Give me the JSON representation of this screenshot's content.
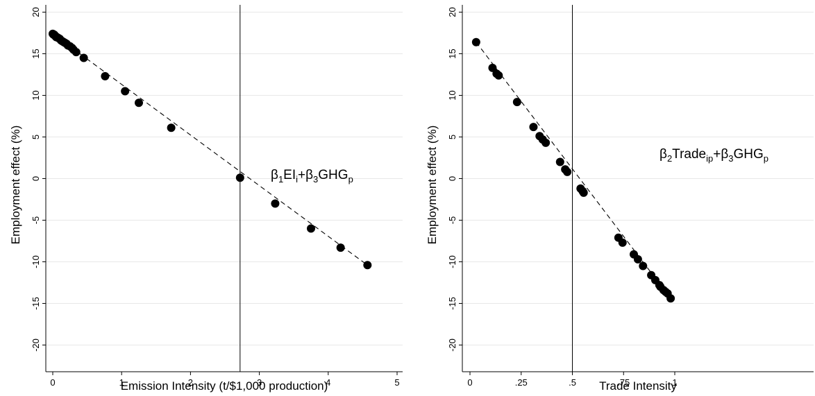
{
  "chart_data": [
    {
      "type": "scatter",
      "xlabel": "Emission Intensity (t/$1,000 production)",
      "ylabel": "Employment effect (%)",
      "xlim": [
        0,
        5
      ],
      "ylim": [
        -20,
        20
      ],
      "x_ticks": [
        0,
        1,
        2,
        3,
        4,
        5
      ],
      "x_tick_labels": [
        "0",
        "1",
        "2",
        "3",
        "4",
        "5"
      ],
      "y_ticks": [
        -20,
        -15,
        -10,
        -5,
        0,
        5,
        10,
        15,
        20
      ],
      "y_tick_labels": [
        "-20",
        "-15",
        "-10",
        "-5",
        "0",
        "5",
        "10",
        "15",
        "20"
      ],
      "grid": true,
      "reference_line_x": 2.72,
      "annotation": {
        "parts": [
          {
            "t": "β",
            "sub": false
          },
          {
            "t": "1",
            "sub": true
          },
          {
            "t": "EI",
            "sub": false
          },
          {
            "t": "i",
            "sub": true
          },
          {
            "t": "+β",
            "sub": false
          },
          {
            "t": "3",
            "sub": true
          },
          {
            "t": "GHG",
            "sub": false
          },
          {
            "t": "p",
            "sub": true
          }
        ]
      },
      "fit_line": {
        "x": [
          0,
          4.57
        ],
        "y": [
          17.4,
          -10.4
        ]
      },
      "series": [
        {
          "x": [
            0.0,
            0.01,
            0.02,
            0.03,
            0.04,
            0.05,
            0.06,
            0.08,
            0.1,
            0.12,
            0.14,
            0.16,
            0.18,
            0.2,
            0.22,
            0.25,
            0.28,
            0.3,
            0.34,
            0.45,
            0.76,
            1.05,
            1.25,
            1.72,
            2.72,
            3.23,
            3.75,
            4.18,
            4.57
          ],
          "y": [
            17.4,
            17.3,
            17.3,
            17.2,
            17.1,
            17.0,
            17.0,
            16.9,
            16.8,
            16.6,
            16.5,
            16.4,
            16.3,
            16.2,
            16.0,
            15.9,
            15.7,
            15.5,
            15.2,
            14.5,
            12.3,
            10.5,
            9.1,
            6.1,
            0.1,
            -3.0,
            -6.0,
            -8.3,
            -10.4
          ]
        }
      ]
    },
    {
      "type": "scatter",
      "xlabel": "Trade Intensity",
      "ylabel": "Employment effect (%)",
      "xlim": [
        0,
        1
      ],
      "ylim": [
        -20,
        20
      ],
      "x_ticks": [
        0,
        0.25,
        0.5,
        0.75,
        1
      ],
      "x_tick_labels": [
        "0",
        ".25",
        ".5",
        ".75",
        "1"
      ],
      "y_ticks": [
        -20,
        -15,
        -10,
        -5,
        0,
        5,
        10,
        15,
        20
      ],
      "y_tick_labels": [
        "-20",
        "-15",
        "-10",
        "-5",
        "0",
        "5",
        "10",
        "15",
        "20"
      ],
      "grid": true,
      "reference_line_x": 0.5,
      "annotation": {
        "parts": [
          {
            "t": "β",
            "sub": false
          },
          {
            "t": "2",
            "sub": true
          },
          {
            "t": "Trade",
            "sub": false
          },
          {
            "t": "ip",
            "sub": true
          },
          {
            "t": "+β",
            "sub": false
          },
          {
            "t": "3",
            "sub": true
          },
          {
            "t": "GHG",
            "sub": false
          },
          {
            "t": "p",
            "sub": true
          }
        ]
      },
      "fit_line": {
        "x": [
          0.03,
          0.98
        ],
        "y": [
          16.4,
          -14.4
        ]
      },
      "series": [
        {
          "x": [
            0.03,
            0.11,
            0.13,
            0.14,
            0.23,
            0.31,
            0.34,
            0.355,
            0.37,
            0.44,
            0.465,
            0.475,
            0.54,
            0.55,
            0.555,
            0.725,
            0.745,
            0.8,
            0.82,
            0.845,
            0.885,
            0.905,
            0.925,
            0.93,
            0.945,
            0.955,
            0.965,
            0.98
          ],
          "y": [
            16.4,
            13.3,
            12.6,
            12.4,
            9.2,
            6.2,
            5.1,
            4.7,
            4.3,
            2.0,
            1.1,
            0.8,
            -1.2,
            -1.5,
            -1.7,
            -7.1,
            -7.7,
            -9.1,
            -9.7,
            -10.5,
            -11.6,
            -12.2,
            -12.8,
            -13.0,
            -13.4,
            -13.6,
            -13.8,
            -14.4
          ]
        }
      ]
    }
  ]
}
